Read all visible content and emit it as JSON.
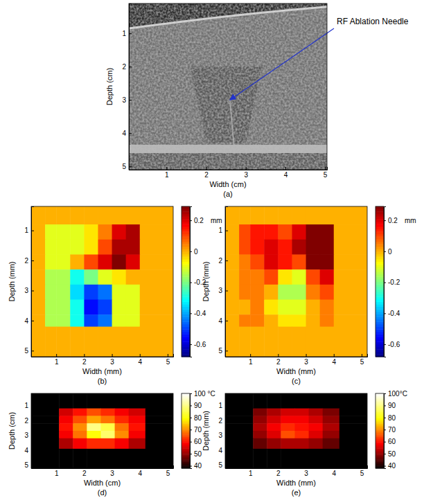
{
  "chart_data": [
    {
      "type": "image",
      "title": "(a)",
      "xlabel": "Width (cm)",
      "ylabel": "Depth (cm)",
      "xlim": [
        0.05,
        5.05
      ],
      "ylim": [
        0.1,
        5.1
      ],
      "xticks": [
        1,
        2,
        3,
        4,
        5
      ],
      "yticks": [
        1,
        2,
        3,
        4,
        5
      ],
      "annotation": {
        "text": "RF Ablation Needle",
        "xy": [
          2.6,
          3.0
        ]
      }
    },
    {
      "type": "heatmap",
      "title": "(b)",
      "xlabel": "Width (mm)",
      "ylabel": "Depth (mm)",
      "xlim": [
        0.1,
        5.2
      ],
      "ylim": [
        0.2,
        5.2
      ],
      "xticks": [
        1,
        2,
        3,
        4,
        5
      ],
      "yticks": [
        1,
        2,
        3,
        4,
        5
      ],
      "color": "jet",
      "x_edges": [
        0.1,
        0.6,
        1.0,
        1.5,
        2.0,
        2.5,
        3.0,
        3.5,
        4.0,
        5.2
      ],
      "y_edges": [
        0.2,
        0.8,
        1.3,
        1.8,
        2.3,
        2.8,
        3.3,
        3.8,
        4.2,
        5.2
      ],
      "z": [
        [
          0,
          0,
          0,
          0,
          0,
          0,
          0,
          0,
          0
        ],
        [
          0,
          -0.1,
          -0.1,
          -0.1,
          -0.05,
          0.05,
          0.2,
          0.25,
          0
        ],
        [
          0,
          -0.1,
          -0.1,
          -0.1,
          -0.05,
          0.1,
          0.25,
          0.25,
          0
        ],
        [
          0,
          -0.1,
          -0.1,
          0.0,
          0.1,
          0.2,
          0.3,
          0.2,
          0
        ],
        [
          0,
          -0.15,
          -0.15,
          -0.3,
          -0.2,
          -0.1,
          -0.05,
          0.0,
          0
        ],
        [
          0,
          -0.15,
          -0.15,
          -0.35,
          -0.5,
          -0.45,
          -0.1,
          -0.1,
          0
        ],
        [
          0,
          -0.15,
          -0.15,
          -0.3,
          -0.55,
          -0.5,
          -0.1,
          -0.1,
          0
        ],
        [
          0,
          -0.15,
          -0.15,
          -0.3,
          -0.5,
          -0.45,
          -0.1,
          -0.1,
          0
        ],
        [
          0,
          0,
          0,
          0,
          0,
          0,
          0,
          0,
          0
        ]
      ],
      "colorbar": {
        "lim": [
          -0.68,
          0.29
        ],
        "ticks": [
          0.2,
          0,
          -0.2,
          -0.4,
          -0.6
        ],
        "label": "mm"
      }
    },
    {
      "type": "heatmap",
      "title": "(c)",
      "xlabel": "Width (mm)",
      "ylabel": "Depth (mm)",
      "xlim": [
        0.1,
        5.2
      ],
      "ylim": [
        0.2,
        5.2
      ],
      "xticks": [
        1,
        2,
        3,
        4,
        5
      ],
      "yticks": [
        1,
        2,
        3,
        4,
        5
      ],
      "color": "jet",
      "x_edges": [
        0.1,
        0.6,
        1.0,
        1.5,
        2.0,
        2.5,
        3.0,
        3.5,
        4.0,
        5.2
      ],
      "y_edges": [
        0.2,
        0.8,
        1.3,
        1.8,
        2.3,
        2.8,
        3.3,
        3.8,
        4.2,
        5.2
      ],
      "z": [
        [
          0,
          0,
          0,
          0,
          0,
          0,
          0,
          0,
          0
        ],
        [
          0,
          0.1,
          0.15,
          0.15,
          0.1,
          0.2,
          0.3,
          0.35,
          0
        ],
        [
          0,
          0.1,
          0.15,
          0.2,
          0.15,
          0.25,
          0.35,
          0.35,
          0
        ],
        [
          0,
          0.05,
          0.1,
          0.2,
          0.15,
          0.1,
          0.3,
          0.3,
          0
        ],
        [
          0,
          0.05,
          0.05,
          0.1,
          -0.05,
          -0.1,
          0.1,
          0.2,
          0
        ],
        [
          0,
          0.05,
          0.05,
          0.0,
          -0.15,
          -0.15,
          0.05,
          0.1,
          0
        ],
        [
          0,
          0.0,
          0.05,
          -0.05,
          -0.1,
          -0.1,
          0.0,
          0.05,
          0
        ],
        [
          0,
          0.05,
          0.05,
          0.0,
          -0.05,
          -0.05,
          0.0,
          0.05,
          0
        ],
        [
          0,
          0,
          0,
          0,
          0,
          0,
          0,
          0,
          0
        ]
      ],
      "colorbar": {
        "lim": [
          -0.68,
          0.29
        ],
        "ticks": [
          0.2,
          0,
          -0.2,
          -0.4,
          -0.6
        ],
        "label": "mm"
      }
    },
    {
      "type": "heatmap",
      "title": "(d)",
      "xlabel": "Width (cm)",
      "ylabel": "Depth (cm)",
      "xlim": [
        0.1,
        5.2
      ],
      "ylim": [
        0.2,
        5.2
      ],
      "xticks": [
        1,
        2,
        3,
        4,
        5
      ],
      "yticks": [
        1,
        2,
        3,
        4,
        5
      ],
      "color": "hot",
      "x_edges": [
        0.1,
        1.1,
        1.6,
        2.1,
        2.6,
        3.1,
        3.6,
        4.2,
        5.2
      ],
      "y_edges": [
        0.2,
        1.2,
        1.7,
        2.2,
        2.7,
        3.2,
        3.9,
        5.2
      ],
      "z": [
        [
          38,
          38,
          38,
          38,
          38,
          38,
          38,
          38
        ],
        [
          38,
          55,
          60,
          65,
          62,
          58,
          55,
          38
        ],
        [
          38,
          58,
          65,
          72,
          68,
          62,
          58,
          38
        ],
        [
          38,
          60,
          70,
          90,
          85,
          68,
          60,
          38
        ],
        [
          38,
          58,
          68,
          80,
          88,
          70,
          58,
          38
        ],
        [
          38,
          52,
          58,
          62,
          62,
          58,
          52,
          38
        ],
        [
          38,
          38,
          38,
          38,
          38,
          38,
          38,
          38
        ]
      ],
      "colorbar": {
        "lim": [
          38,
          100
        ],
        "ticks": [
          {
            "value": 100,
            "label": "100 °C"
          },
          90,
          80,
          70,
          60,
          50,
          40
        ]
      }
    },
    {
      "type": "heatmap",
      "title": "(e)",
      "xlabel": "Width (mm)",
      "ylabel": "Depth (mm)",
      "xlim": [
        0.1,
        5.2
      ],
      "ylim": [
        0.2,
        5.2
      ],
      "xticks": [
        1,
        2,
        3,
        4,
        5
      ],
      "yticks": [
        1,
        2,
        3,
        4,
        5
      ],
      "color": "hot",
      "x_edges": [
        0.1,
        1.1,
        1.6,
        2.1,
        2.6,
        3.1,
        3.6,
        4.2,
        5.2
      ],
      "y_edges": [
        0.2,
        1.2,
        1.7,
        2.2,
        2.7,
        3.2,
        3.9,
        5.2
      ],
      "z": [
        [
          38,
          38,
          38,
          38,
          38,
          38,
          38,
          38
        ],
        [
          38,
          48,
          52,
          55,
          55,
          52,
          48,
          38
        ],
        [
          38,
          50,
          55,
          58,
          58,
          55,
          50,
          38
        ],
        [
          38,
          52,
          58,
          62,
          60,
          58,
          52,
          38
        ],
        [
          38,
          50,
          56,
          65,
          62,
          56,
          50,
          38
        ],
        [
          38,
          46,
          50,
          52,
          52,
          50,
          46,
          38
        ],
        [
          38,
          38,
          38,
          38,
          38,
          38,
          38,
          38
        ]
      ],
      "colorbar": {
        "lim": [
          38,
          100
        ],
        "ticks": [
          {
            "value": 100,
            "label": "100°C"
          },
          90,
          80,
          70,
          60,
          50,
          40
        ]
      }
    }
  ]
}
